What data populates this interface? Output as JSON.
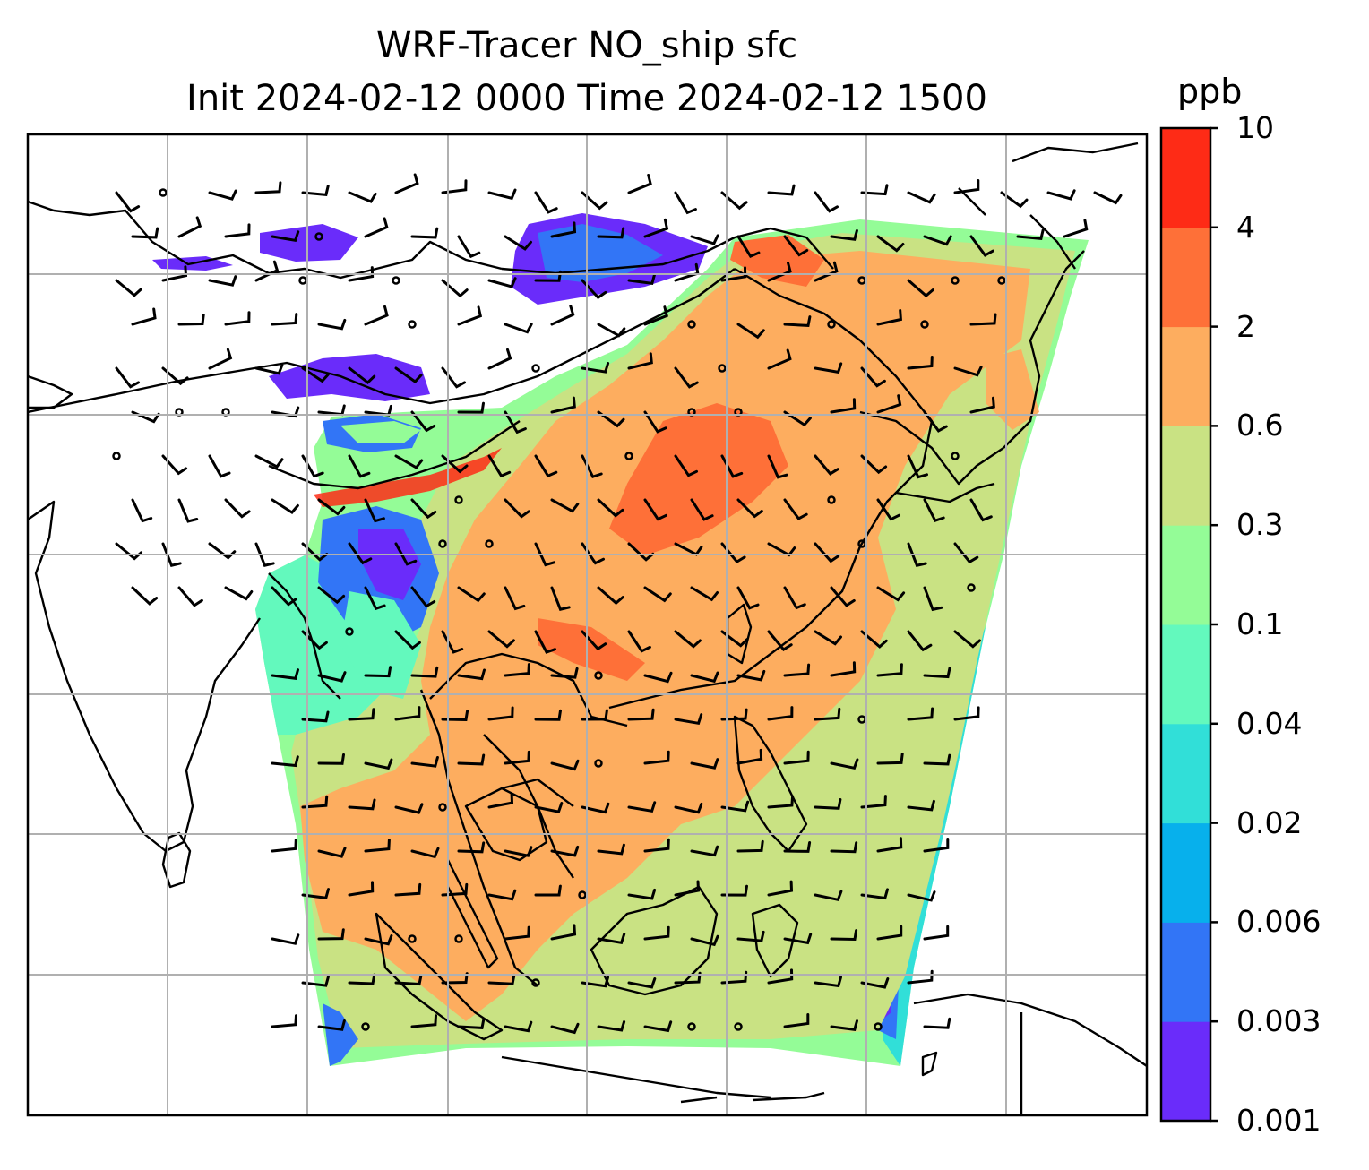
{
  "title": {
    "line1": "WRF-Tracer NO_ship sfc",
    "line2": "Init 2024-02-12 0000 Time 2024-02-12 1500"
  },
  "colorbar": {
    "unit": "ppb",
    "levels": [
      "0.001",
      "0.003",
      "0.006",
      "0.02",
      "0.04",
      "0.1",
      "0.3",
      "0.6",
      "2",
      "4",
      "10"
    ],
    "colors": [
      "#6a2cfa",
      "#3275f6",
      "#07b0ec",
      "#31dfd8",
      "#63f9bd",
      "#94fc97",
      "#c9e283",
      "#fdad5f",
      "#fe7038",
      "#fe2b16"
    ]
  },
  "map": {
    "variable": "NO_ship",
    "level": "sfc",
    "grid": "on",
    "gridline_color": "#b0b0b0",
    "coastline_color": "#000000",
    "wind_barbs": true
  }
}
